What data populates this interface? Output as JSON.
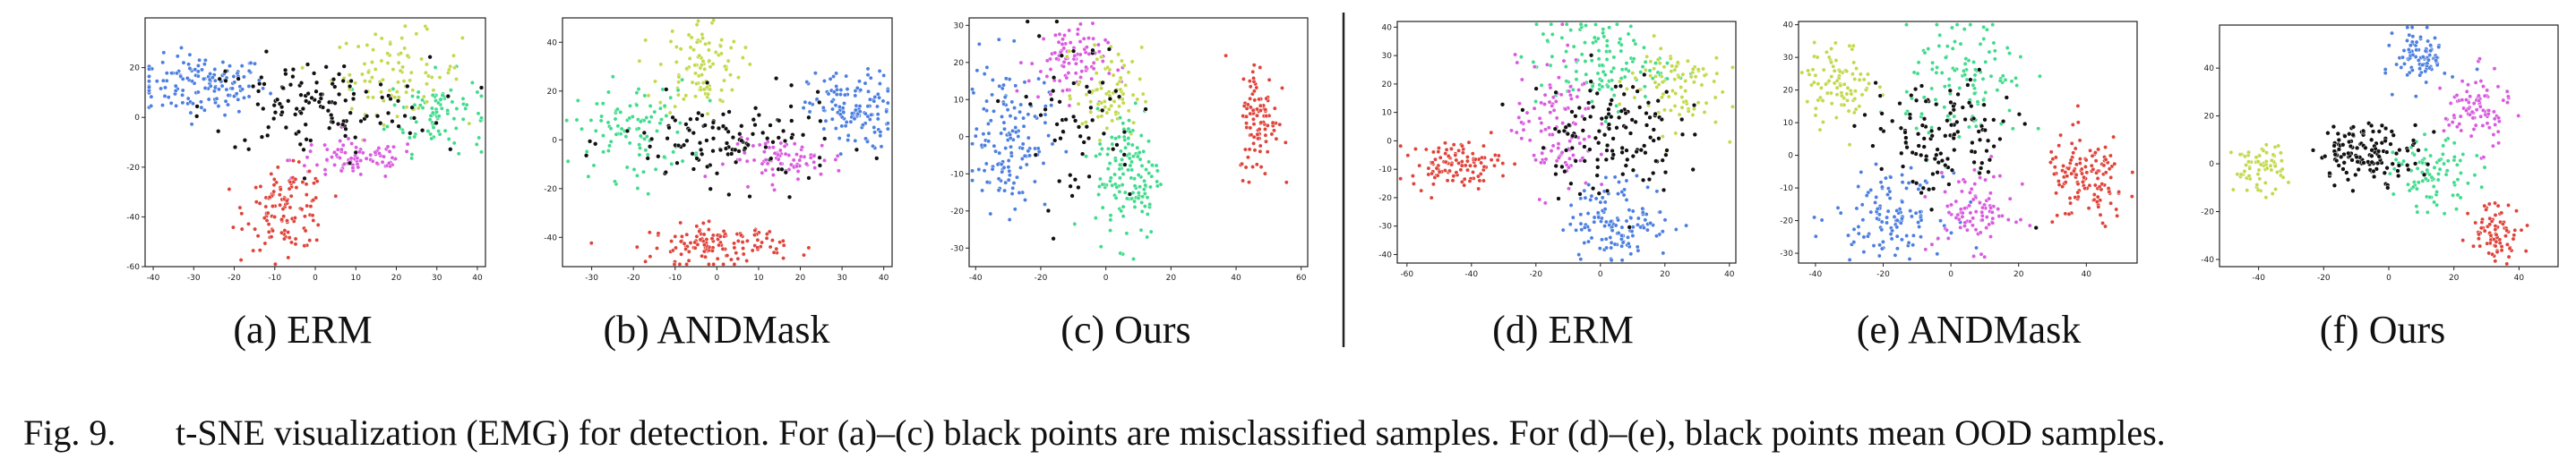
{
  "figure": {
    "caption_label": "Fig. 9.",
    "caption_text": "t-SNE visualization (EMG) for detection. For (a)–(c) black points are misclassified samples. For (d)–(e), black points mean OOD samples."
  },
  "colors": {
    "red": "#e0433a",
    "blue": "#4c7fe0",
    "green": "#3fdc8c",
    "yellow": "#c3d94a",
    "magenta": "#d95be0",
    "black": "#111111"
  },
  "chart_data": [
    {
      "type": "scatter",
      "caption": "(a) ERM",
      "xlim": [
        -42,
        42
      ],
      "ylim": [
        -60,
        40
      ],
      "xticks": [
        -40,
        -30,
        -20,
        -10,
        0,
        10,
        20,
        30,
        40
      ],
      "yticks": [
        -60,
        -40,
        -20,
        0,
        20
      ],
      "clusters": [
        {
          "color": "blue",
          "center": [
            -28,
            13
          ],
          "spread": [
            8,
            6
          ],
          "n": 140
        },
        {
          "color": "green",
          "center": [
            30,
            2
          ],
          "spread": [
            6,
            8
          ],
          "n": 90
        },
        {
          "color": "yellow",
          "center": [
            20,
            18
          ],
          "spread": [
            8,
            8
          ],
          "n": 90
        },
        {
          "color": "magenta",
          "center": [
            10,
            -17
          ],
          "spread": [
            8,
            4
          ],
          "n": 90
        },
        {
          "color": "red",
          "center": [
            -7,
            -37
          ],
          "spread": [
            5,
            8
          ],
          "n": 120
        },
        {
          "color": "black",
          "center": [
            0,
            4
          ],
          "spread": [
            14,
            10
          ],
          "n": 130
        }
      ]
    },
    {
      "type": "scatter",
      "caption": "(b) ANDMask",
      "xlim": [
        -37,
        42
      ],
      "ylim": [
        -52,
        50
      ],
      "xticks": [
        -30,
        -20,
        -10,
        0,
        10,
        20,
        30,
        40
      ],
      "yticks": [
        -40,
        -20,
        0,
        20,
        40
      ],
      "clusters": [
        {
          "color": "yellow",
          "center": [
            -4,
            30
          ],
          "spread": [
            5,
            10
          ],
          "n": 100
        },
        {
          "color": "blue",
          "center": [
            32,
            12
          ],
          "spread": [
            5,
            8
          ],
          "n": 130
        },
        {
          "color": "green",
          "center": [
            -20,
            4
          ],
          "spread": [
            7,
            10
          ],
          "n": 100
        },
        {
          "color": "magenta",
          "center": [
            17,
            -8
          ],
          "spread": [
            7,
            4
          ],
          "n": 80
        },
        {
          "color": "red",
          "center": [
            0,
            -43
          ],
          "spread": [
            8,
            4
          ],
          "n": 130
        },
        {
          "color": "black",
          "center": [
            3,
            -1
          ],
          "spread": [
            13,
            9
          ],
          "n": 120
        }
      ]
    },
    {
      "type": "scatter",
      "caption": "(c) Ours",
      "xlim": [
        -42,
        62
      ],
      "ylim": [
        -35,
        32
      ],
      "xticks": [
        -40,
        -20,
        0,
        20,
        40,
        60
      ],
      "yticks": [
        -30,
        -20,
        -10,
        0,
        10,
        20,
        30
      ],
      "clusters": [
        {
          "color": "blue",
          "center": [
            -30,
            0
          ],
          "spread": [
            6,
            10
          ],
          "n": 140
        },
        {
          "color": "magenta",
          "center": [
            -12,
            20
          ],
          "spread": [
            6,
            5
          ],
          "n": 90
        },
        {
          "color": "yellow",
          "center": [
            1,
            12
          ],
          "spread": [
            5,
            6
          ],
          "n": 80
        },
        {
          "color": "green",
          "center": [
            7,
            -10
          ],
          "spread": [
            5,
            9
          ],
          "n": 140
        },
        {
          "color": "red",
          "center": [
            47,
            5
          ],
          "spread": [
            3,
            8
          ],
          "n": 100
        },
        {
          "color": "black",
          "center": [
            -10,
            5
          ],
          "spread": [
            10,
            12
          ],
          "n": 60
        }
      ]
    },
    {
      "type": "scatter",
      "caption": "(d) ERM",
      "xlim": [
        -63,
        42
      ],
      "ylim": [
        -43,
        42
      ],
      "xticks": [
        -60,
        -40,
        -20,
        0,
        20,
        40
      ],
      "yticks": [
        -40,
        -30,
        -20,
        -10,
        0,
        10,
        20,
        30,
        40
      ],
      "clusters": [
        {
          "color": "red",
          "center": [
            -45,
            -8
          ],
          "spread": [
            7,
            4
          ],
          "n": 110
        },
        {
          "color": "green",
          "center": [
            0,
            27
          ],
          "spread": [
            10,
            8
          ],
          "n": 120
        },
        {
          "color": "yellow",
          "center": [
            22,
            20
          ],
          "spread": [
            8,
            8
          ],
          "n": 90
        },
        {
          "color": "magenta",
          "center": [
            -14,
            5
          ],
          "spread": [
            6,
            12
          ],
          "n": 110
        },
        {
          "color": "blue",
          "center": [
            6,
            -28
          ],
          "spread": [
            8,
            7
          ],
          "n": 130
        },
        {
          "color": "black",
          "center": [
            2,
            3
          ],
          "spread": [
            11,
            11
          ],
          "n": 130
        }
      ]
    },
    {
      "type": "scatter",
      "caption": "(e) ANDMask",
      "xlim": [
        -45,
        55
      ],
      "ylim": [
        -33,
        41
      ],
      "xticks": [
        -40,
        -20,
        0,
        20,
        40
      ],
      "yticks": [
        -30,
        -20,
        -10,
        0,
        10,
        20,
        30,
        40
      ],
      "clusters": [
        {
          "color": "yellow",
          "center": [
            -33,
            22
          ],
          "spread": [
            5,
            6
          ],
          "n": 90
        },
        {
          "color": "green",
          "center": [
            5,
            22
          ],
          "spread": [
            9,
            10
          ],
          "n": 120
        },
        {
          "color": "red",
          "center": [
            40,
            -8
          ],
          "spread": [
            6,
            7
          ],
          "n": 130
        },
        {
          "color": "blue",
          "center": [
            -18,
            -18
          ],
          "spread": [
            8,
            6
          ],
          "n": 120
        },
        {
          "color": "magenta",
          "center": [
            7,
            -17
          ],
          "spread": [
            6,
            6
          ],
          "n": 90
        },
        {
          "color": "black",
          "center": [
            -3,
            5
          ],
          "spread": [
            11,
            9
          ],
          "n": 120
        }
      ]
    },
    {
      "type": "scatter",
      "caption": "(f) Ours",
      "xlim": [
        -52,
        52
      ],
      "ylim": [
        -43,
        58
      ],
      "xticks": [
        -40,
        -20,
        0,
        20,
        40
      ],
      "yticks": [
        -40,
        -20,
        0,
        20,
        40
      ],
      "clusters": [
        {
          "color": "blue",
          "center": [
            10,
            45
          ],
          "spread": [
            4,
            6
          ],
          "n": 90
        },
        {
          "color": "magenta",
          "center": [
            27,
            22
          ],
          "spread": [
            5,
            8
          ],
          "n": 90
        },
        {
          "color": "yellow",
          "center": [
            -40,
            -2
          ],
          "spread": [
            4,
            5
          ],
          "n": 70
        },
        {
          "color": "green",
          "center": [
            14,
            -5
          ],
          "spread": [
            6,
            7
          ],
          "n": 90
        },
        {
          "color": "red",
          "center": [
            33,
            -28
          ],
          "spread": [
            4,
            6
          ],
          "n": 80
        },
        {
          "color": "black",
          "center": [
            -6,
            5
          ],
          "spread": [
            8,
            6
          ],
          "n": 130
        }
      ]
    }
  ]
}
